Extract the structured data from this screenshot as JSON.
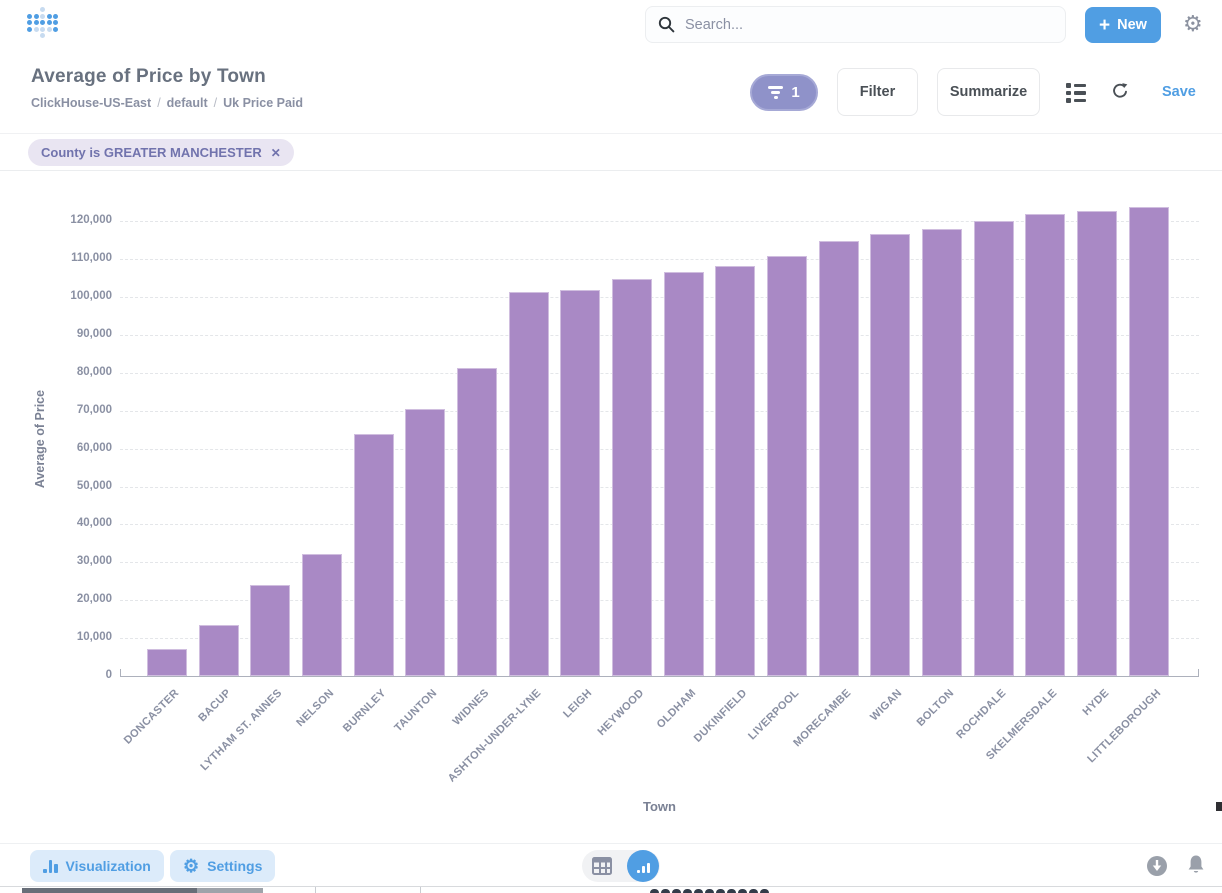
{
  "header": {
    "search_placeholder": "Search...",
    "new_button": "New"
  },
  "question": {
    "title": "Average of Price by Town",
    "breadcrumb": [
      "ClickHouse-US-East",
      "default",
      "Uk Price Paid"
    ],
    "filter_count": "1",
    "filter_button": "Filter",
    "summarize_button": "Summarize",
    "save_button": "Save"
  },
  "filters": {
    "chip_label": "County is GREATER MANCHESTER",
    "chip_close": "✕"
  },
  "footer": {
    "visualization_button": "Visualization",
    "settings_button": "Settings"
  },
  "icons": {
    "logo": "metabase-dot-logo",
    "search": "magnifier",
    "new": "plus",
    "top_right": "gear",
    "filter_badge": "funnel",
    "actions": [
      "list",
      "refresh"
    ],
    "footer_left": [
      "bar-chart",
      "gear"
    ],
    "footer_center": [
      "table-grid",
      "bar-chart"
    ],
    "footer_right": [
      "download",
      "bell"
    ]
  },
  "colors": {
    "accent": "#509EE3",
    "bar": "#A989C5",
    "filter_purple": "#7173AD",
    "pill_purple": "#8F92C9"
  },
  "chart_data": {
    "type": "bar",
    "title": "Average of Price by Town",
    "xlabel": "Town",
    "ylabel": "Average of Price",
    "categories": [
      "DONCASTER",
      "BACUP",
      "LYTHAM ST. ANNES",
      "NELSON",
      "BURNLEY",
      "TAUNTON",
      "WIDNES",
      "ASHTON-UNDER-LYNE",
      "LEIGH",
      "HEYWOOD",
      "OLDHAM",
      "DUKINFIELD",
      "LIVERPOOL",
      "MORECAMBE",
      "WIGAN",
      "BOLTON",
      "ROCHDALE",
      "SKELMERSDALE",
      "HYDE",
      "LITTLEBOROUGH"
    ],
    "values": [
      7000,
      13400,
      24100,
      32300,
      63900,
      70400,
      81200,
      101300,
      101800,
      104900,
      106600,
      108300,
      110900,
      114900,
      116700,
      118100,
      120200,
      121900,
      122800,
      123800
    ],
    "ylim": [
      0,
      125000
    ],
    "yticks": [
      0,
      10000,
      20000,
      30000,
      40000,
      50000,
      60000,
      70000,
      80000,
      90000,
      100000,
      110000,
      120000
    ],
    "grid": "horizontal-dashed",
    "legend": "none",
    "bar_color": "#A989C5"
  }
}
